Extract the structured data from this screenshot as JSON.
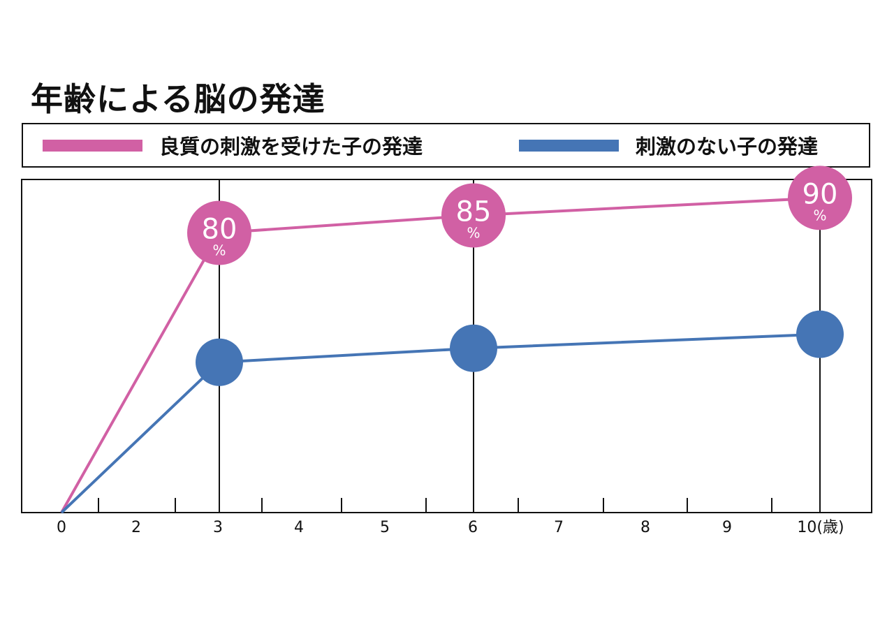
{
  "chart_data": {
    "type": "line",
    "title": "年齢による脳の発達",
    "xlabel": "",
    "ylabel": "",
    "x": [
      0,
      3,
      6,
      10
    ],
    "x_ticks": [
      "0",
      "2",
      "3",
      "4",
      "5",
      "6",
      "7",
      "8",
      "9",
      "10(歳)"
    ],
    "ylim": [
      0,
      100
    ],
    "grid": "vertical lines at 3, 6, 10",
    "legend_position": "top",
    "series": [
      {
        "name": "良質の刺激を受けた子の発達",
        "color": "#d160a4",
        "values": [
          0,
          80,
          85,
          90
        ],
        "labels": [
          null,
          {
            "value": "80",
            "unit": "%"
          },
          {
            "value": "85",
            "unit": "%"
          },
          {
            "value": "90",
            "unit": "%"
          }
        ]
      },
      {
        "name": "刺激のない子の発達",
        "color": "#4575b5",
        "values": [
          0,
          43,
          47,
          51
        ],
        "labels": [
          null,
          null,
          null,
          null
        ]
      }
    ]
  }
}
